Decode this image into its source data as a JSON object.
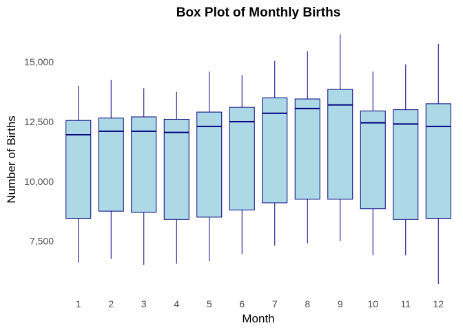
{
  "chart_data": {
    "type": "box",
    "title": "Box Plot of Monthly Births",
    "xlabel": "Month",
    "ylabel": "Number of Births",
    "categories": [
      "1",
      "2",
      "3",
      "4",
      "5",
      "6",
      "7",
      "8",
      "9",
      "10",
      "11",
      "12"
    ],
    "y_ticks": [
      7500,
      10000,
      12500,
      15000
    ],
    "y_tick_labels": [
      "7,500",
      "10,000",
      "12,500",
      "15,000"
    ],
    "ylim": [
      5500,
      16300
    ],
    "grid": false,
    "legend": "none",
    "colors": {
      "box_fill": "#add8e6",
      "box_stroke": "#000080"
    },
    "boxes": [
      {
        "month": "1",
        "min": 6600,
        "q1": 8450,
        "median": 11950,
        "q3": 12550,
        "max": 14000
      },
      {
        "month": "2",
        "min": 6750,
        "q1": 8750,
        "median": 12100,
        "q3": 12650,
        "max": 14250
      },
      {
        "month": "3",
        "min": 6500,
        "q1": 8700,
        "median": 12100,
        "q3": 12700,
        "max": 13900
      },
      {
        "month": "4",
        "min": 6550,
        "q1": 8400,
        "median": 12050,
        "q3": 12600,
        "max": 13750
      },
      {
        "month": "5",
        "min": 6650,
        "q1": 8500,
        "median": 12300,
        "q3": 12900,
        "max": 14600
      },
      {
        "month": "6",
        "min": 6950,
        "q1": 8800,
        "median": 12500,
        "q3": 13100,
        "max": 14450
      },
      {
        "month": "7",
        "min": 7300,
        "q1": 9100,
        "median": 12850,
        "q3": 13500,
        "max": 15050
      },
      {
        "month": "8",
        "min": 7400,
        "q1": 9250,
        "median": 13050,
        "q3": 13450,
        "max": 15450
      },
      {
        "month": "9",
        "min": 7500,
        "q1": 9250,
        "median": 13200,
        "q3": 13850,
        "max": 16150
      },
      {
        "month": "10",
        "min": 6900,
        "q1": 8850,
        "median": 12450,
        "q3": 12950,
        "max": 14600
      },
      {
        "month": "11",
        "min": 6900,
        "q1": 8400,
        "median": 12400,
        "q3": 13000,
        "max": 14900
      },
      {
        "month": "12",
        "min": 5700,
        "q1": 8450,
        "median": 12300,
        "q3": 13250,
        "max": 15750
      }
    ]
  }
}
